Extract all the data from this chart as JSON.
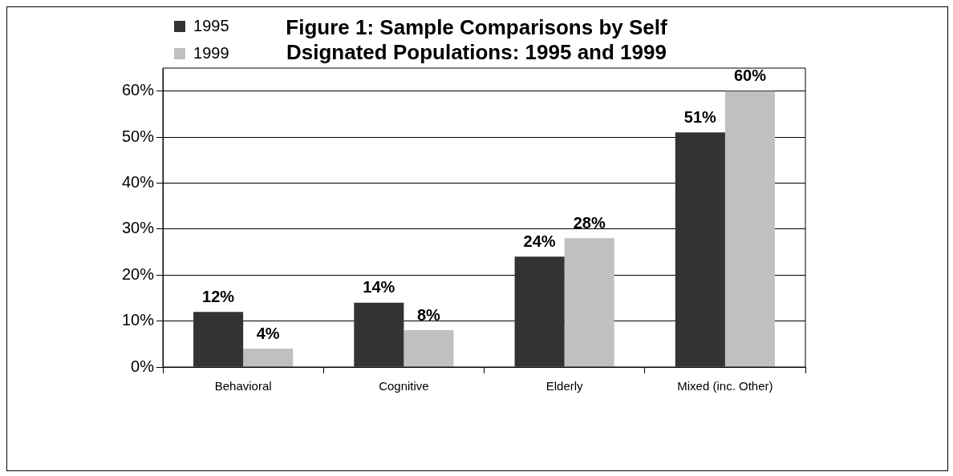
{
  "chart_data": {
    "type": "bar",
    "title": "Figure 1: Sample Comparisons by Self Dsignated Populations: 1995 and 1999",
    "categories": [
      "Behavioral",
      "Cognitive",
      "Elderly",
      "Mixed (inc. Other)"
    ],
    "series": [
      {
        "name": "1995",
        "color": "#333333",
        "values": [
          12,
          14,
          24,
          51
        ],
        "value_labels": [
          "12%",
          "14%",
          "24%",
          "51%"
        ]
      },
      {
        "name": "1999",
        "color": "#c0c0c0",
        "values": [
          4,
          8,
          28,
          60
        ],
        "value_labels": [
          "4%",
          "8%",
          "28%",
          "60%"
        ]
      }
    ],
    "ylim": [
      0,
      65
    ],
    "yticks": [
      {
        "value": 0,
        "label": "0%"
      },
      {
        "value": 10,
        "label": "10%"
      },
      {
        "value": 20,
        "label": "20%"
      },
      {
        "value": 30,
        "label": "30%"
      },
      {
        "value": 40,
        "label": "40%"
      },
      {
        "value": 50,
        "label": "50%"
      },
      {
        "value": 60,
        "label": "60%"
      }
    ],
    "grid": "y",
    "legend": "top left"
  }
}
